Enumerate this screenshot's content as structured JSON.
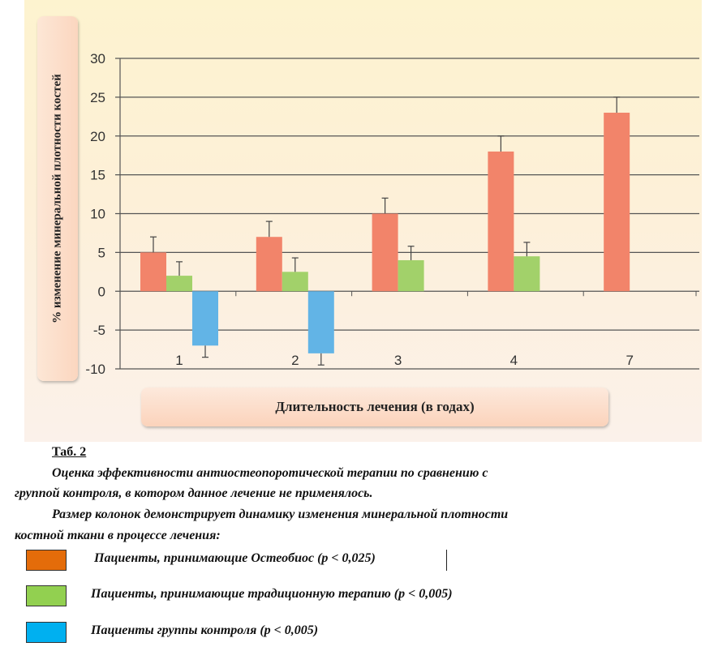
{
  "chart_data": {
    "type": "bar",
    "ylabel": "% изменение минеральной плотности костей",
    "xlabel": "Длительность лечения (в годах)",
    "categories": [
      "1",
      "2",
      "3",
      "4",
      "7"
    ],
    "ylim": [
      -10,
      30
    ],
    "yticks": [
      30,
      25,
      20,
      15,
      10,
      5,
      0,
      -5,
      -10
    ],
    "grid": true,
    "series": [
      {
        "name": "Пациенты, принимающие Остеобиос (р < 0,025)",
        "color": "#f2846a",
        "values": [
          5,
          7,
          10,
          18,
          23
        ],
        "errors": [
          2,
          2,
          2,
          2,
          2
        ]
      },
      {
        "name": "Пациенты, принимающие традиционную терапию (р < 0,005)",
        "color": "#a2d16a",
        "values": [
          2,
          2.5,
          4,
          4.5,
          null
        ],
        "errors": [
          1.8,
          1.8,
          1.8,
          1.8,
          null
        ]
      },
      {
        "name": "Пациенты группы контроля (р < 0,005)",
        "color": "#62b4e6",
        "values": [
          -7,
          -8,
          null,
          null,
          null
        ],
        "errors": [
          1.5,
          1.5,
          null,
          null,
          null
        ]
      }
    ]
  },
  "caption": {
    "title": "Таб. 2",
    "line1a": "Оценка эффективности антиостеопоротической терапии по сравнению с",
    "line1b": "группой контроля, в котором данное лечение не применялось.",
    "line2a": "Размер колонок демонстрирует динамику изменения минеральной плотности",
    "line2b": "костной ткани в процессе лечения:"
  },
  "legend": {
    "items": [
      {
        "label": "Пациенты, принимающие Остеобиос (р < 0,025)",
        "color": "#e46c0a"
      },
      {
        "label": "Пациенты, принимающие традиционную терапию (р < 0,005)",
        "color": "#92d050"
      },
      {
        "label": "Пациенты группы контроля (р < 0,005)",
        "color": "#00b0f0"
      }
    ]
  }
}
